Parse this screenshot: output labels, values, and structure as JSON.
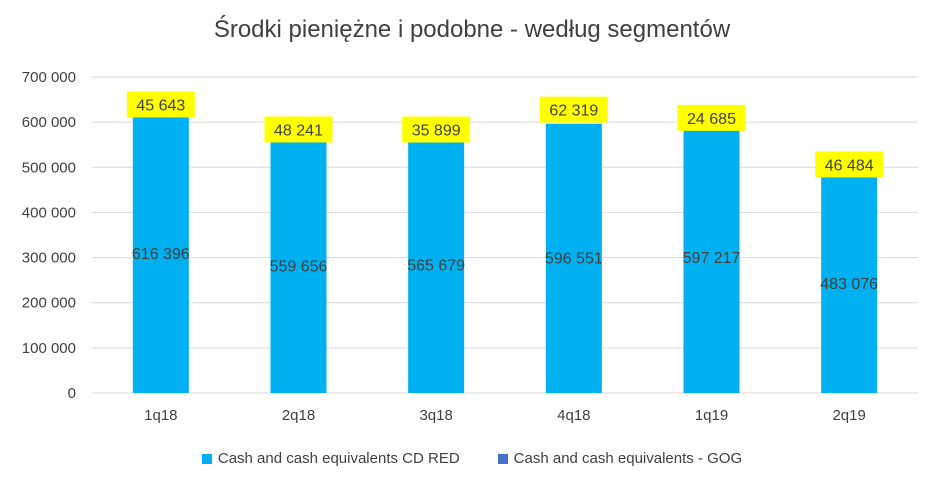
{
  "chart_data": {
    "type": "bar",
    "stacked": true,
    "title": "Środki pieniężne i podobne - według segmentów",
    "categories": [
      "1q18",
      "2q18",
      "3q18",
      "4q18",
      "1q19",
      "2q19"
    ],
    "series": [
      {
        "name": "Cash and cash equivalents CD RED",
        "color": "#00B0F0",
        "values": [
          616396,
          559656,
          565679,
          596551,
          597217,
          483076
        ],
        "labels": [
          "616 396",
          "559 656",
          "565 679",
          "596 551",
          "597 217",
          "483 076"
        ]
      },
      {
        "name": "Cash and cash equivalents - GOG",
        "color": "#4472C4",
        "values": [
          45643,
          48241,
          35899,
          62319,
          24685,
          46484
        ],
        "labels": [
          "45 643",
          "48 241",
          "35 899",
          "62 319",
          "24 685",
          "46 484"
        ]
      }
    ],
    "gog_label_highlight": "#FFFF00",
    "ylim": [
      0,
      700000
    ],
    "yticks": [
      0,
      100000,
      200000,
      300000,
      400000,
      500000,
      600000,
      700000
    ],
    "ytick_labels": [
      "0",
      "100 000",
      "200 000",
      "300 000",
      "400 000",
      "500 000",
      "600 000",
      "700 000"
    ],
    "grid": true,
    "legend": "bottom",
    "xlabel": "",
    "ylabel": ""
  }
}
